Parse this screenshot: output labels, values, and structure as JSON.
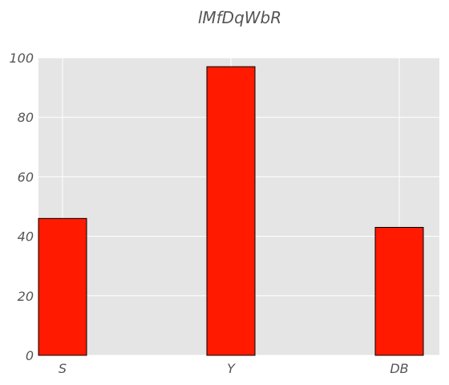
{
  "chart_data": {
    "type": "bar",
    "title": "lMfDqWbR",
    "xlabel": "",
    "ylabel": "",
    "categories": [
      "S",
      "Y",
      "DB"
    ],
    "values": [
      46,
      97,
      43
    ],
    "ylim": [
      0,
      100
    ],
    "yticks": [
      0,
      20,
      40,
      60,
      80,
      100
    ],
    "grid": true,
    "legend": "none"
  },
  "colors": {
    "bar_fill": "#ff1a00",
    "bar_edge": "#000000",
    "plot_background": "#e5e5e5",
    "grid": "#ffffff",
    "text": "#555555"
  }
}
